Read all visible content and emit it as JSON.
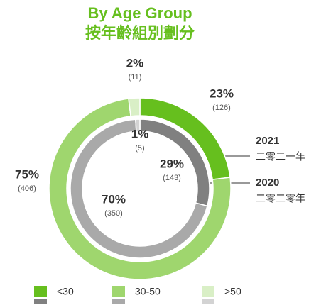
{
  "chart_data": {
    "type": "donut",
    "title": "By Age Group",
    "subtitle": "按年齡組別劃分",
    "categories": [
      "<30",
      "30-50",
      ">50"
    ],
    "series": [
      {
        "name": "2021",
        "label": "二零二一年",
        "colors": [
          "#66bf1e",
          "#9fd66e",
          "#d9efc6"
        ],
        "values": [
          23,
          75,
          2
        ],
        "value_labels": [
          "23%",
          "75%",
          "2%"
        ],
        "counts": [
          126,
          406,
          11
        ],
        "count_labels": [
          "(126)",
          "(406)",
          "(11)"
        ]
      },
      {
        "name": "2020",
        "label": "二零二零年",
        "colors": [
          "#808080",
          "#a9a9a9",
          "#d3d3d3"
        ],
        "values": [
          29,
          70,
          1
        ],
        "value_labels": [
          "29%",
          "70%",
          "1%"
        ],
        "counts": [
          143,
          350,
          5
        ],
        "count_labels": [
          "(143)",
          "(350)",
          "(5)"
        ]
      }
    ]
  }
}
